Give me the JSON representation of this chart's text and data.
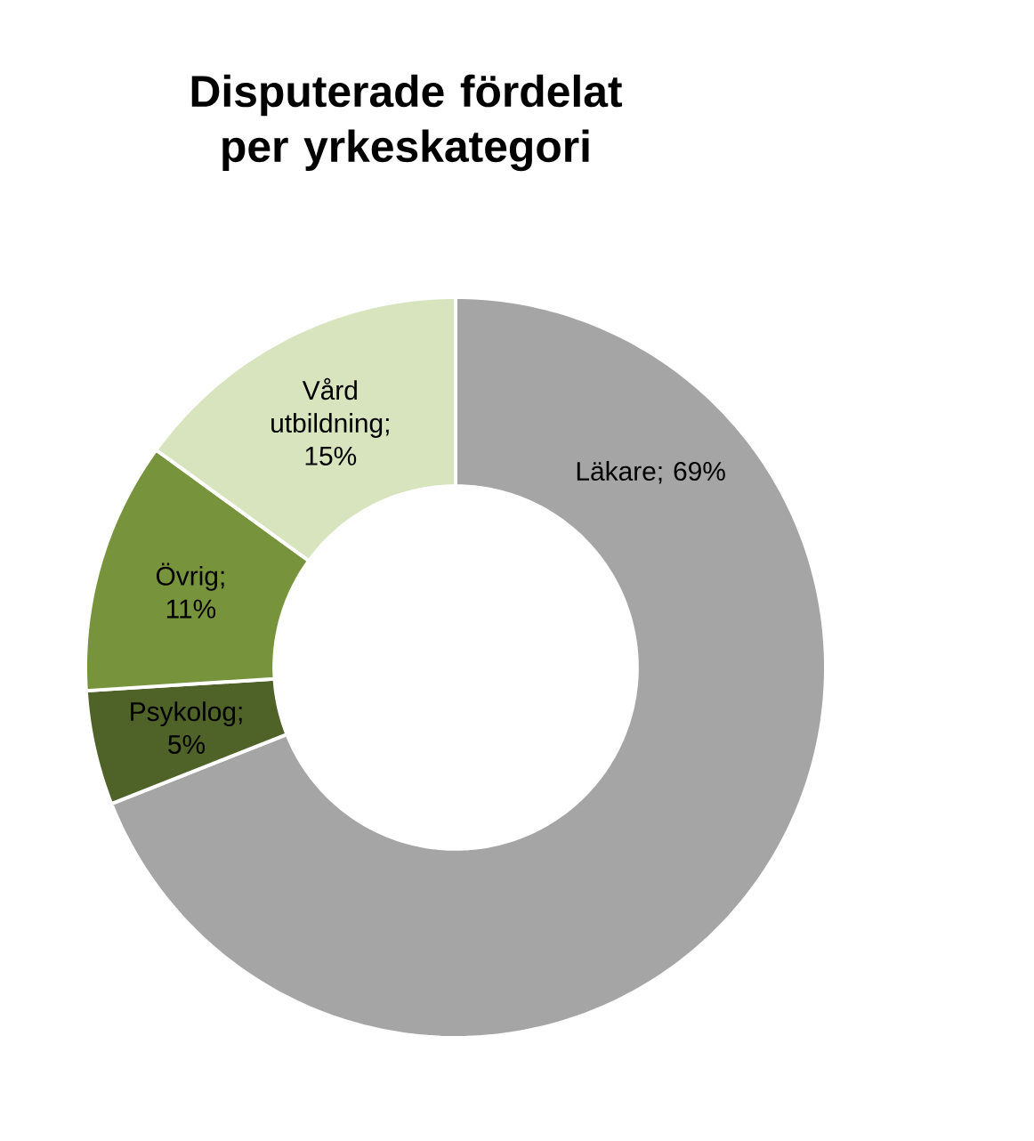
{
  "chart_data": {
    "type": "donut",
    "title": "Disputerade fördelat per yrkeskategori",
    "categories": [
      "Läkare",
      "Psykolog",
      "Övrig",
      "Vård utbildning"
    ],
    "values": [
      69,
      5,
      11,
      15
    ],
    "colors": [
      "#a5a5a5",
      "#4f6228",
      "#77933c",
      "#d7e4bd"
    ],
    "value_labels": [
      "; 69%",
      "; 5%",
      "; 11%",
      "; 15%"
    ]
  }
}
